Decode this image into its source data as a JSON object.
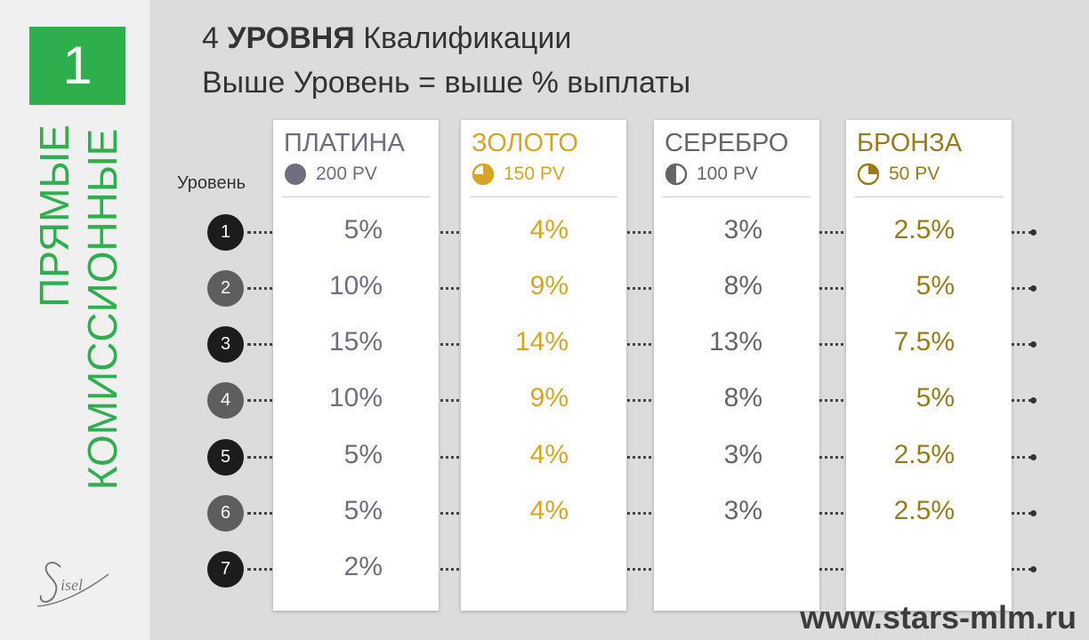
{
  "section_number": "1",
  "side_title": [
    "ПРЯМЫЕ",
    "КОМИССИОННЫЕ"
  ],
  "logo_text": "Sisel",
  "title": {
    "line1_prefix": "4",
    "line1_bold": "УРОВНЯ",
    "line1_rest": "Квалификации",
    "line2": "Выше Уровень = выше % выплаты"
  },
  "level_label": "Уровень",
  "levels": [
    "1",
    "2",
    "3",
    "4",
    "5",
    "6",
    "7"
  ],
  "columns": [
    {
      "name": "ПЛАТИНА",
      "pv": "200 PV",
      "icon": "full-circle-icon",
      "color": "#6e6e80",
      "values": [
        "5%",
        "10%",
        "15%",
        "10%",
        "5%",
        "5%",
        "2%"
      ]
    },
    {
      "name": "ЗОЛОТО",
      "pv": "150 PV",
      "icon": "three-quarter-circle-icon",
      "color": "#d9a423",
      "values": [
        "4%",
        "9%",
        "14%",
        "9%",
        "4%",
        "4%",
        ""
      ]
    },
    {
      "name": "СЕРЕБРО",
      "pv": "100 PV",
      "icon": "half-circle-icon",
      "color": "#666666",
      "values": [
        "3%",
        "8%",
        "13%",
        "8%",
        "3%",
        "3%",
        ""
      ]
    },
    {
      "name": "БРОНЗА",
      "pv": "50 PV",
      "icon": "quarter-circle-icon",
      "color": "#9a7a1a",
      "values": [
        "2.5%",
        "5%",
        "7.5%",
        "5%",
        "2.5%",
        "2.5%",
        ""
      ]
    }
  ],
  "website": "www.stars-mlm.ru",
  "colors": {
    "accent_green": "#2fae4e",
    "level_dark": "#1c1c1c",
    "level_gray": "#5e5e5e"
  }
}
